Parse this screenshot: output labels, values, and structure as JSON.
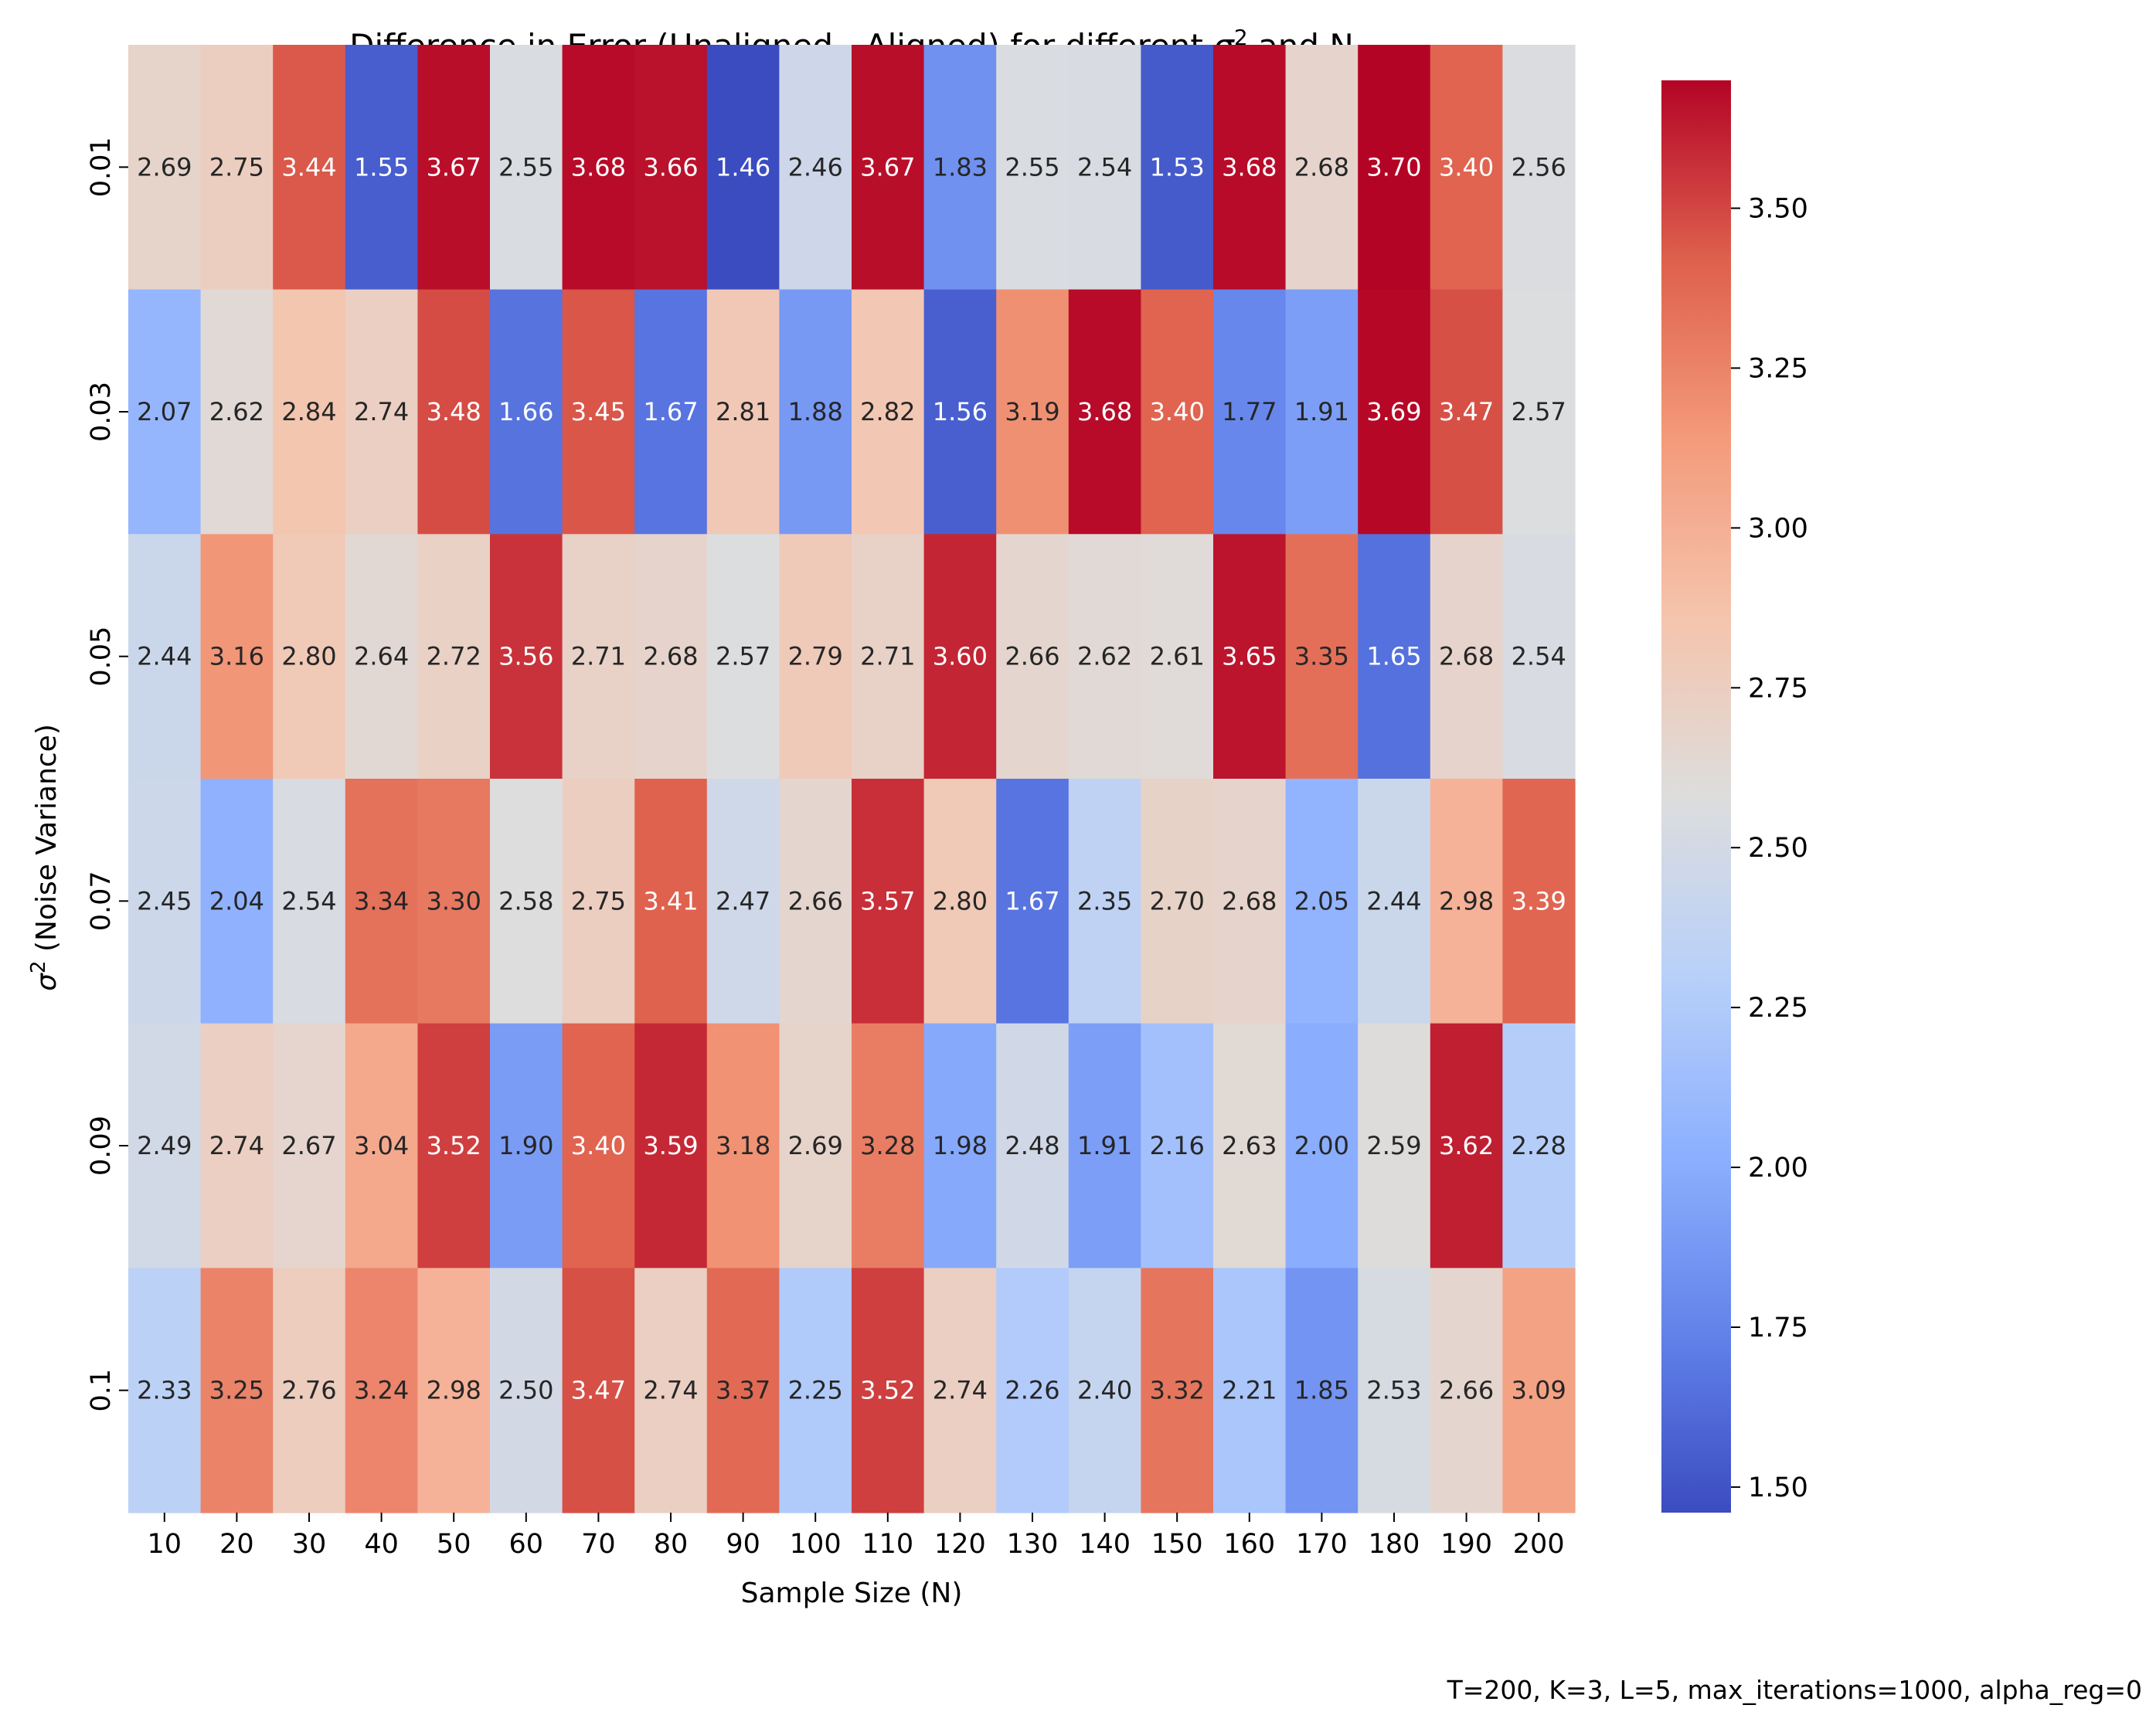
{
  "chart_data": {
    "type": "heatmap",
    "title_prefix": "Difference in Error (Unaligned - Aligned) for different ",
    "title_symbol": "σ",
    "title_superscript": "2",
    "title_suffix": " and N",
    "xlabel": "Sample Size (N)",
    "ylabel_symbol": "σ",
    "ylabel_superscript": "2",
    "ylabel_suffix": " (Noise Variance)",
    "footnote": "T=200, K=3, L=5, max_iterations=1000, alpha_reg=0",
    "x_categories": [
      "10",
      "20",
      "30",
      "40",
      "50",
      "60",
      "70",
      "80",
      "90",
      "100",
      "110",
      "120",
      "130",
      "140",
      "150",
      "160",
      "170",
      "180",
      "190",
      "200"
    ],
    "y_categories": [
      "0.01",
      "0.03",
      "0.05",
      "0.07",
      "0.09",
      "0.1"
    ],
    "values": [
      [
        2.69,
        2.75,
        3.44,
        1.55,
        3.67,
        2.55,
        3.68,
        3.66,
        1.46,
        2.46,
        3.67,
        1.83,
        2.55,
        2.54,
        1.53,
        3.68,
        2.68,
        3.7,
        3.4,
        2.56
      ],
      [
        2.07,
        2.62,
        2.84,
        2.74,
        3.48,
        1.66,
        3.45,
        1.67,
        2.81,
        1.88,
        2.82,
        1.56,
        3.19,
        3.68,
        3.4,
        1.77,
        1.91,
        3.69,
        3.47,
        2.57
      ],
      [
        2.44,
        3.16,
        2.8,
        2.64,
        2.72,
        3.56,
        2.71,
        2.68,
        2.57,
        2.79,
        2.71,
        3.6,
        2.66,
        2.62,
        2.61,
        3.65,
        3.35,
        1.65,
        2.68,
        2.54
      ],
      [
        2.45,
        2.04,
        2.54,
        3.34,
        3.3,
        2.58,
        2.75,
        3.41,
        2.47,
        2.66,
        3.57,
        2.8,
        1.67,
        2.35,
        2.7,
        2.68,
        2.05,
        2.44,
        2.98,
        3.39
      ],
      [
        2.49,
        2.74,
        2.67,
        3.04,
        3.52,
        1.9,
        3.4,
        3.59,
        3.18,
        2.69,
        3.28,
        1.98,
        2.48,
        1.91,
        2.16,
        2.63,
        2.0,
        2.59,
        3.62,
        2.28
      ],
      [
        2.33,
        3.25,
        2.76,
        3.24,
        2.98,
        2.5,
        3.47,
        2.74,
        3.37,
        2.25,
        3.52,
        2.74,
        2.26,
        2.4,
        3.32,
        2.21,
        1.85,
        2.53,
        2.66,
        3.09
      ]
    ],
    "colormap": "coolwarm",
    "vmin": 1.46,
    "vmax": 3.7,
    "colorbar_ticks": [
      "1.50",
      "1.75",
      "2.00",
      "2.25",
      "2.50",
      "2.75",
      "3.00",
      "3.25",
      "3.50"
    ]
  }
}
